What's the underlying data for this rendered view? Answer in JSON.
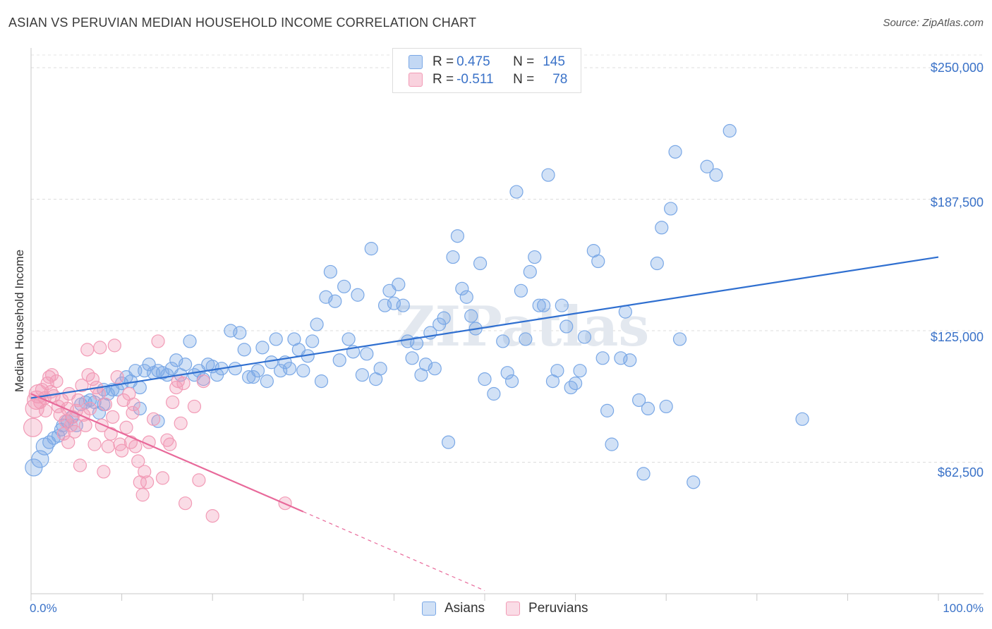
{
  "title": "ASIAN VS PERUVIAN MEDIAN HOUSEHOLD INCOME CORRELATION CHART",
  "source": "Source: ZipAtlas.com",
  "watermark": "ZIPatlas",
  "legend": {
    "r_label": "R =",
    "n_label": "N =",
    "rows": [
      {
        "series": "Asians",
        "r": "0.475",
        "n": "145",
        "color": "#7aa8e6"
      },
      {
        "series": "Peruvians",
        "r": "-0.511",
        "n": "78",
        "color": "#f29bb6"
      }
    ]
  },
  "bottom_legend": [
    {
      "label": "Asians",
      "color": "#7aa8e6"
    },
    {
      "label": "Peruvians",
      "color": "#f29bb6"
    }
  ],
  "chart_data": {
    "type": "scatter",
    "title": "ASIAN VS PERUVIAN MEDIAN HOUSEHOLD INCOME CORRELATION CHART",
    "xlabel": "",
    "ylabel": "Median Household Income",
    "x_tick_labels": [
      "0.0%",
      "100.0%"
    ],
    "y_tick_labels": [
      "$62,500",
      "$125,000",
      "$187,500",
      "$250,000"
    ],
    "y_ticks": [
      62500,
      125000,
      187500,
      250000
    ],
    "xlim": [
      0,
      100
    ],
    "ylim": [
      0,
      262000
    ],
    "grid": true,
    "series": [
      {
        "name": "Asians",
        "color": "#7aa8e6",
        "line_color": "#2f6fd0",
        "trend": {
          "x": [
            0,
            100
          ],
          "y": [
            93000,
            160000
          ],
          "dashed_from": null
        },
        "points": [
          [
            0.3,
            60000
          ],
          [
            1,
            64000
          ],
          [
            1.5,
            70000
          ],
          [
            2,
            72000
          ],
          [
            2.5,
            74000
          ],
          [
            3,
            75000
          ],
          [
            3.3,
            78000
          ],
          [
            4,
            82000
          ],
          [
            4.5,
            84000
          ],
          [
            5,
            80000
          ],
          [
            5.5,
            90000
          ],
          [
            6,
            91000
          ],
          [
            6.5,
            92000
          ],
          [
            7,
            91000
          ],
          [
            7.5,
            86000
          ],
          [
            8,
            97000
          ],
          [
            8.5,
            95000
          ],
          [
            9,
            97000
          ],
          [
            9.5,
            97000
          ],
          [
            10,
            100000
          ],
          [
            10.5,
            103000
          ],
          [
            11,
            101000
          ],
          [
            11.5,
            106000
          ],
          [
            12,
            98000
          ],
          [
            12.5,
            106000
          ],
          [
            13,
            109000
          ],
          [
            13.5,
            105000
          ],
          [
            14,
            106000
          ],
          [
            14.5,
            105000
          ],
          [
            15,
            104000
          ],
          [
            15.5,
            107000
          ],
          [
            16,
            111000
          ],
          [
            16.5,
            104000
          ],
          [
            17,
            109000
          ],
          [
            17.5,
            120000
          ],
          [
            18,
            104000
          ],
          [
            18.5,
            106000
          ],
          [
            19,
            102000
          ],
          [
            19.5,
            109000
          ],
          [
            20,
            108000
          ],
          [
            20.5,
            104000
          ],
          [
            21,
            107000
          ],
          [
            22,
            125000
          ],
          [
            22.5,
            107000
          ],
          [
            23,
            124000
          ],
          [
            23.5,
            116000
          ],
          [
            24,
            103000
          ],
          [
            24.5,
            103000
          ],
          [
            25,
            106000
          ],
          [
            25.5,
            117000
          ],
          [
            26,
            101000
          ],
          [
            26.5,
            110000
          ],
          [
            27,
            121000
          ],
          [
            27.5,
            106000
          ],
          [
            28,
            110000
          ],
          [
            28.5,
            107000
          ],
          [
            29,
            121000
          ],
          [
            29.5,
            116000
          ],
          [
            30,
            106000
          ],
          [
            30.5,
            113000
          ],
          [
            31,
            120000
          ],
          [
            31.5,
            128000
          ],
          [
            32,
            101000
          ],
          [
            32.5,
            141000
          ],
          [
            33,
            153000
          ],
          [
            33.5,
            139000
          ],
          [
            34,
            111000
          ],
          [
            34.5,
            146000
          ],
          [
            35,
            121000
          ],
          [
            35.5,
            115000
          ],
          [
            36,
            142000
          ],
          [
            36.5,
            104000
          ],
          [
            37,
            114000
          ],
          [
            37.5,
            164000
          ],
          [
            38,
            102000
          ],
          [
            38.5,
            107000
          ],
          [
            39,
            137000
          ],
          [
            39.5,
            144000
          ],
          [
            40,
            138000
          ],
          [
            40.5,
            147000
          ],
          [
            41,
            137000
          ],
          [
            41.5,
            120000
          ],
          [
            42,
            112000
          ],
          [
            42.5,
            119000
          ],
          [
            43,
            104000
          ],
          [
            43.5,
            109000
          ],
          [
            44,
            124000
          ],
          [
            44.5,
            107000
          ],
          [
            45,
            128000
          ],
          [
            45.5,
            131000
          ],
          [
            46,
            72000
          ],
          [
            46.5,
            160000
          ],
          [
            47,
            170000
          ],
          [
            47.5,
            145000
          ],
          [
            48,
            141000
          ],
          [
            48.5,
            132000
          ],
          [
            49,
            126000
          ],
          [
            49.5,
            157000
          ],
          [
            50,
            102000
          ],
          [
            51,
            95000
          ],
          [
            52,
            120000
          ],
          [
            52.5,
            105000
          ],
          [
            53,
            101000
          ],
          [
            53.5,
            191000
          ],
          [
            54,
            144000
          ],
          [
            54.5,
            121000
          ],
          [
            55,
            153000
          ],
          [
            55.5,
            160000
          ],
          [
            56,
            137000
          ],
          [
            56.5,
            137000
          ],
          [
            57,
            199000
          ],
          [
            57.5,
            101000
          ],
          [
            58,
            106000
          ],
          [
            58.5,
            137000
          ],
          [
            59,
            127000
          ],
          [
            59.5,
            98000
          ],
          [
            60,
            100000
          ],
          [
            60.5,
            106000
          ],
          [
            61,
            122000
          ],
          [
            62,
            163000
          ],
          [
            62.5,
            158000
          ],
          [
            63,
            112000
          ],
          [
            63.5,
            87000
          ],
          [
            64,
            71000
          ],
          [
            65,
            112000
          ],
          [
            65.5,
            134000
          ],
          [
            66,
            111000
          ],
          [
            67,
            92000
          ],
          [
            67.5,
            57000
          ],
          [
            68,
            88000
          ],
          [
            69,
            157000
          ],
          [
            69.5,
            174000
          ],
          [
            70,
            89000
          ],
          [
            70.5,
            183000
          ],
          [
            71,
            210000
          ],
          [
            71.5,
            121000
          ],
          [
            73,
            53000
          ],
          [
            74.5,
            203000
          ],
          [
            75.5,
            199000
          ],
          [
            77,
            220000
          ],
          [
            85,
            83000
          ],
          [
            3.5,
            80000
          ],
          [
            8,
            90000
          ],
          [
            12,
            88000
          ],
          [
            14,
            82000
          ]
        ]
      },
      {
        "name": "Peruvians",
        "color": "#f29bb6",
        "line_color": "#e8699a",
        "trend": {
          "x": [
            0,
            30,
            50
          ],
          "y": [
            95000,
            39000,
            1500
          ],
          "dashed_from": 30
        },
        "points": [
          [
            0.2,
            79000
          ],
          [
            0.4,
            88000
          ],
          [
            0.6,
            92000
          ],
          [
            0.8,
            95000
          ],
          [
            1,
            91000
          ],
          [
            1.2,
            97000
          ],
          [
            1.5,
            93000
          ],
          [
            1.8,
            100000
          ],
          [
            2,
            103000
          ],
          [
            2.2,
            96000
          ],
          [
            2.5,
            94000
          ],
          [
            2.8,
            101000
          ],
          [
            3,
            89000
          ],
          [
            3.2,
            85000
          ],
          [
            3.4,
            92000
          ],
          [
            3.6,
            76000
          ],
          [
            3.8,
            82000
          ],
          [
            4,
            88000
          ],
          [
            4.2,
            95000
          ],
          [
            4.4,
            80000
          ],
          [
            4.6,
            84000
          ],
          [
            4.8,
            77000
          ],
          [
            5,
            87000
          ],
          [
            5.2,
            92000
          ],
          [
            5.4,
            61000
          ],
          [
            5.6,
            99000
          ],
          [
            5.8,
            85000
          ],
          [
            6,
            80000
          ],
          [
            6.2,
            116000
          ],
          [
            6.5,
            88000
          ],
          [
            6.8,
            102000
          ],
          [
            7,
            71000
          ],
          [
            7.2,
            98000
          ],
          [
            7.5,
            95000
          ],
          [
            7.8,
            80000
          ],
          [
            8,
            58000
          ],
          [
            8.2,
            90000
          ],
          [
            8.5,
            70000
          ],
          [
            8.8,
            76000
          ],
          [
            9,
            84000
          ],
          [
            9.2,
            118000
          ],
          [
            9.5,
            103000
          ],
          [
            9.8,
            71000
          ],
          [
            10,
            68000
          ],
          [
            10.2,
            92000
          ],
          [
            10.5,
            79000
          ],
          [
            10.8,
            95000
          ],
          [
            11,
            72000
          ],
          [
            11.2,
            86000
          ],
          [
            11.5,
            70000
          ],
          [
            11.8,
            63000
          ],
          [
            12,
            53000
          ],
          [
            12.3,
            47000
          ],
          [
            12.5,
            58000
          ],
          [
            12.8,
            53000
          ],
          [
            13,
            72000
          ],
          [
            13.5,
            83000
          ],
          [
            14,
            120000
          ],
          [
            14.5,
            55000
          ],
          [
            15,
            73000
          ],
          [
            15.3,
            71000
          ],
          [
            15.6,
            91000
          ],
          [
            16,
            98000
          ],
          [
            16.5,
            81000
          ],
          [
            17,
            43000
          ],
          [
            18,
            89000
          ],
          [
            18.5,
            54000
          ],
          [
            19,
            101000
          ],
          [
            20,
            37000
          ],
          [
            16.2,
            101000
          ],
          [
            6.3,
            104000
          ],
          [
            2.3,
            104000
          ],
          [
            4.1,
            72000
          ],
          [
            1.6,
            87000
          ],
          [
            7.6,
            117000
          ],
          [
            11.3,
            90000
          ],
          [
            16.8,
            100000
          ],
          [
            28,
            43000
          ]
        ]
      }
    ]
  }
}
